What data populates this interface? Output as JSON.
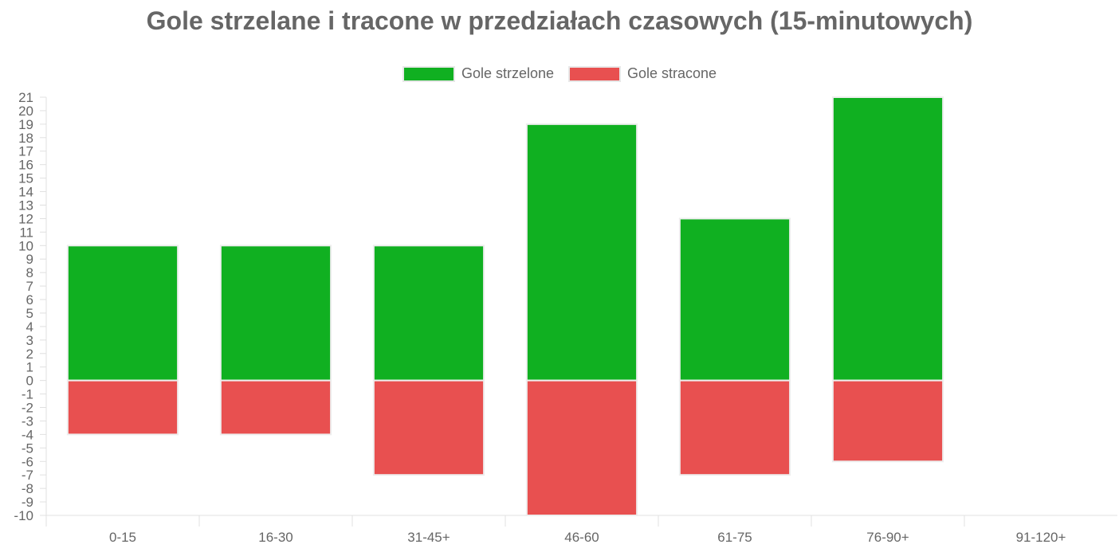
{
  "chart_data": {
    "type": "bar",
    "title": "Gole strzelane i tracone w przedziałach czasowych (15-minutowych)",
    "categories": [
      "0-15",
      "16-30",
      "31-45+",
      "46-60",
      "61-75",
      "76-90+",
      "91-120+"
    ],
    "series": [
      {
        "name": "Gole strzelone",
        "color": "#10b021",
        "values": [
          10,
          10,
          10,
          19,
          12,
          21,
          0
        ]
      },
      {
        "name": "Gole stracone",
        "color": "#e85050",
        "values": [
          -4,
          -4,
          -7,
          -10,
          -7,
          -6,
          0
        ]
      }
    ],
    "ylim": [
      -10,
      21
    ],
    "yticks": [
      "-10",
      "-9",
      "-8",
      "-7",
      "-6",
      "-5",
      "-4",
      "-3",
      "-2",
      "-1",
      "0",
      "1",
      "2",
      "3",
      "4",
      "5",
      "6",
      "7",
      "8",
      "9",
      "10",
      "11",
      "12",
      "13",
      "14",
      "15",
      "16",
      "17",
      "18",
      "19",
      "20",
      "21"
    ],
    "stacked": true,
    "legend_position": "top",
    "grid": false
  }
}
